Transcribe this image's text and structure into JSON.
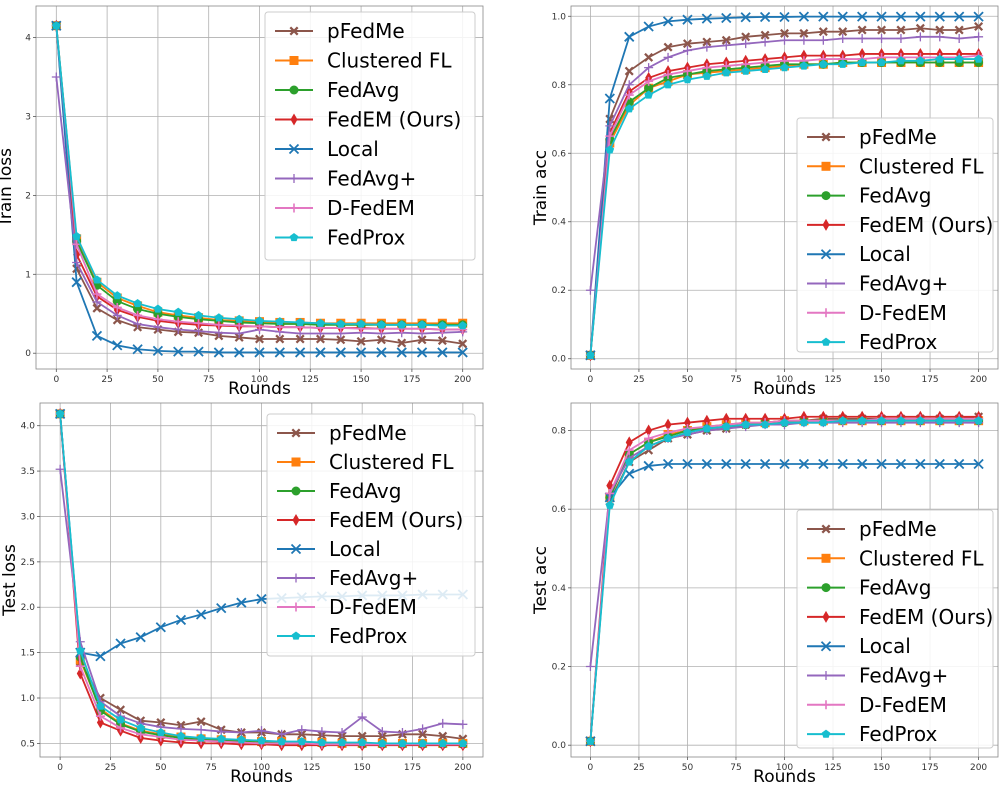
{
  "chart_data": [
    {
      "type": "line",
      "xlabel": "Rounds",
      "ylabel": "Train loss",
      "xlim": [
        -10,
        210
      ],
      "ylim": [
        -0.2,
        4.4
      ],
      "xticks": [
        "0",
        "25",
        "50",
        "75",
        "100",
        "125",
        "150",
        "175",
        "200"
      ],
      "yticks": [
        "0",
        "1",
        "2",
        "3",
        "4"
      ],
      "legend": "top-right",
      "grid": true,
      "x": [
        0,
        10,
        20,
        30,
        40,
        50,
        60,
        70,
        80,
        90,
        100,
        110,
        120,
        130,
        140,
        150,
        160,
        170,
        180,
        190,
        200
      ],
      "series": [
        {
          "name": "pFedMe",
          "color": "#8c564b",
          "marker": "X",
          "values": [
            4.15,
            1.07,
            0.57,
            0.42,
            0.33,
            0.3,
            0.27,
            0.26,
            0.22,
            0.2,
            0.18,
            0.18,
            0.18,
            0.18,
            0.17,
            0.15,
            0.17,
            0.13,
            0.17,
            0.16,
            0.12
          ]
        },
        {
          "name": "Clustered FL",
          "color": "#ff7f0e",
          "marker": "s",
          "values": [
            4.15,
            1.45,
            0.9,
            0.7,
            0.6,
            0.52,
            0.48,
            0.45,
            0.42,
            0.41,
            0.4,
            0.39,
            0.39,
            0.38,
            0.38,
            0.38,
            0.38,
            0.38,
            0.38,
            0.38,
            0.38
          ]
        },
        {
          "name": "FedAvg",
          "color": "#2ca02c",
          "marker": "o",
          "values": [
            4.15,
            1.42,
            0.86,
            0.66,
            0.56,
            0.5,
            0.46,
            0.43,
            0.41,
            0.39,
            0.38,
            0.37,
            0.37,
            0.36,
            0.36,
            0.36,
            0.36,
            0.36,
            0.36,
            0.36,
            0.36
          ]
        },
        {
          "name": "FedEM (Ours)",
          "color": "#d62728",
          "marker": "d",
          "values": [
            4.15,
            1.25,
            0.72,
            0.55,
            0.46,
            0.41,
            0.38,
            0.36,
            0.35,
            0.34,
            0.34,
            0.33,
            0.33,
            0.32,
            0.32,
            0.32,
            0.31,
            0.31,
            0.31,
            0.3,
            0.3
          ]
        },
        {
          "name": "Local",
          "color": "#1f77b4",
          "marker": "x",
          "values": [
            4.15,
            0.9,
            0.22,
            0.1,
            0.05,
            0.03,
            0.02,
            0.02,
            0.01,
            0.01,
            0.01,
            0.01,
            0.01,
            0.01,
            0.01,
            0.01,
            0.01,
            0.01,
            0.01,
            0.01,
            0.01
          ]
        },
        {
          "name": "FedAvg+",
          "color": "#9467bd",
          "marker": "4",
          "values": [
            3.5,
            1.15,
            0.65,
            0.48,
            0.37,
            0.33,
            0.3,
            0.28,
            0.26,
            0.25,
            0.3,
            0.27,
            0.25,
            0.25,
            0.25,
            0.26,
            0.25,
            0.26,
            0.25,
            0.26,
            0.27
          ]
        },
        {
          "name": "D-FedEM",
          "color": "#e377c2",
          "marker": "+",
          "values": [
            4.15,
            1.38,
            0.75,
            0.58,
            0.48,
            0.43,
            0.4,
            0.38,
            0.36,
            0.35,
            0.34,
            0.33,
            0.33,
            0.32,
            0.32,
            0.31,
            0.31,
            0.31,
            0.31,
            0.3,
            0.3
          ]
        },
        {
          "name": "FedProx",
          "color": "#17becf",
          "marker": "p",
          "values": [
            4.15,
            1.48,
            0.93,
            0.73,
            0.63,
            0.56,
            0.52,
            0.48,
            0.45,
            0.43,
            0.41,
            0.4,
            0.39,
            0.38,
            0.37,
            0.37,
            0.36,
            0.36,
            0.36,
            0.35,
            0.35
          ]
        }
      ]
    },
    {
      "type": "line",
      "xlabel": "Rounds",
      "ylabel": "Train acc",
      "xlim": [
        -10,
        210
      ],
      "ylim": [
        -0.03,
        1.03
      ],
      "xticks": [
        "0",
        "25",
        "50",
        "75",
        "100",
        "125",
        "150",
        "175",
        "200"
      ],
      "yticks": [
        "0.0",
        "0.2",
        "0.4",
        "0.6",
        "0.8",
        "1.0"
      ],
      "legend": "lower-right",
      "grid": true,
      "x": [
        0,
        10,
        20,
        30,
        40,
        50,
        60,
        70,
        80,
        90,
        100,
        110,
        120,
        130,
        140,
        150,
        160,
        170,
        180,
        190,
        200
      ],
      "series": [
        {
          "name": "pFedMe",
          "color": "#8c564b",
          "marker": "X",
          "values": [
            0.01,
            0.7,
            0.84,
            0.88,
            0.91,
            0.92,
            0.925,
            0.93,
            0.94,
            0.945,
            0.95,
            0.95,
            0.955,
            0.955,
            0.96,
            0.96,
            0.96,
            0.965,
            0.96,
            0.96,
            0.97
          ]
        },
        {
          "name": "Clustered FL",
          "color": "#ff7f0e",
          "marker": "s",
          "values": [
            0.01,
            0.63,
            0.74,
            0.79,
            0.81,
            0.83,
            0.835,
            0.84,
            0.845,
            0.85,
            0.855,
            0.86,
            0.86,
            0.865,
            0.865,
            0.865,
            0.865,
            0.865,
            0.865,
            0.865,
            0.865
          ]
        },
        {
          "name": "FedAvg",
          "color": "#2ca02c",
          "marker": "o",
          "values": [
            0.01,
            0.64,
            0.75,
            0.79,
            0.82,
            0.83,
            0.84,
            0.845,
            0.85,
            0.855,
            0.86,
            0.86,
            0.86,
            0.865,
            0.865,
            0.865,
            0.865,
            0.865,
            0.865,
            0.865,
            0.865
          ]
        },
        {
          "name": "FedEM (Ours)",
          "color": "#d62728",
          "marker": "d",
          "values": [
            0.01,
            0.66,
            0.78,
            0.82,
            0.84,
            0.85,
            0.86,
            0.865,
            0.87,
            0.875,
            0.88,
            0.885,
            0.885,
            0.885,
            0.89,
            0.89,
            0.89,
            0.89,
            0.89,
            0.89,
            0.89
          ]
        },
        {
          "name": "Local",
          "color": "#1f77b4",
          "marker": "x",
          "values": [
            0.01,
            0.76,
            0.94,
            0.97,
            0.985,
            0.99,
            0.993,
            0.995,
            0.997,
            0.998,
            0.998,
            0.999,
            0.999,
            0.999,
            0.999,
            0.999,
            0.999,
            0.999,
            0.999,
            0.999,
            0.999
          ]
        },
        {
          "name": "FedAvg+",
          "color": "#9467bd",
          "marker": "4",
          "values": [
            0.2,
            0.68,
            0.8,
            0.85,
            0.88,
            0.9,
            0.91,
            0.915,
            0.92,
            0.925,
            0.93,
            0.93,
            0.93,
            0.935,
            0.935,
            0.935,
            0.935,
            0.94,
            0.94,
            0.935,
            0.94
          ]
        },
        {
          "name": "D-FedEM",
          "color": "#e377c2",
          "marker": "+",
          "values": [
            0.01,
            0.65,
            0.77,
            0.81,
            0.83,
            0.84,
            0.85,
            0.855,
            0.86,
            0.865,
            0.87,
            0.87,
            0.875,
            0.875,
            0.875,
            0.88,
            0.88,
            0.88,
            0.88,
            0.88,
            0.885
          ]
        },
        {
          "name": "FedProx",
          "color": "#17becf",
          "marker": "p",
          "values": [
            0.01,
            0.61,
            0.73,
            0.77,
            0.8,
            0.815,
            0.825,
            0.835,
            0.84,
            0.845,
            0.85,
            0.855,
            0.86,
            0.86,
            0.865,
            0.865,
            0.87,
            0.87,
            0.875,
            0.875,
            0.875
          ]
        }
      ]
    },
    {
      "type": "line",
      "xlabel": "Rounds",
      "ylabel": "Test loss",
      "xlim": [
        -10,
        210
      ],
      "ylim": [
        0.35,
        4.25
      ],
      "xticks": [
        "0",
        "25",
        "50",
        "75",
        "100",
        "125",
        "150",
        "175",
        "200"
      ],
      "yticks": [
        "0.5",
        "1.0",
        "1.5",
        "2.0",
        "2.5",
        "3.0",
        "3.5",
        "4.0"
      ],
      "legend": "top-right",
      "grid": true,
      "x": [
        0,
        10,
        20,
        30,
        40,
        50,
        60,
        70,
        80,
        90,
        100,
        110,
        120,
        130,
        140,
        150,
        160,
        170,
        180,
        190,
        200
      ],
      "series": [
        {
          "name": "pFedMe",
          "color": "#8c564b",
          "marker": "X",
          "values": [
            4.13,
            1.4,
            1.0,
            0.87,
            0.75,
            0.73,
            0.7,
            0.74,
            0.65,
            0.62,
            0.62,
            0.6,
            0.6,
            0.59,
            0.58,
            0.58,
            0.58,
            0.6,
            0.6,
            0.58,
            0.55
          ]
        },
        {
          "name": "Clustered FL",
          "color": "#ff7f0e",
          "marker": "s",
          "values": [
            4.13,
            1.42,
            0.88,
            0.72,
            0.64,
            0.6,
            0.57,
            0.55,
            0.54,
            0.53,
            0.52,
            0.52,
            0.51,
            0.51,
            0.5,
            0.5,
            0.5,
            0.5,
            0.5,
            0.5,
            0.5
          ]
        },
        {
          "name": "FedAvg",
          "color": "#2ca02c",
          "marker": "o",
          "values": [
            4.13,
            1.45,
            0.86,
            0.71,
            0.63,
            0.59,
            0.56,
            0.54,
            0.53,
            0.52,
            0.51,
            0.51,
            0.5,
            0.5,
            0.5,
            0.49,
            0.49,
            0.49,
            0.49,
            0.49,
            0.49
          ]
        },
        {
          "name": "FedEM (Ours)",
          "color": "#d62728",
          "marker": "d",
          "values": [
            4.13,
            1.27,
            0.73,
            0.64,
            0.56,
            0.53,
            0.51,
            0.5,
            0.5,
            0.49,
            0.49,
            0.48,
            0.48,
            0.48,
            0.48,
            0.48,
            0.48,
            0.48,
            0.48,
            0.48,
            0.48
          ]
        },
        {
          "name": "Local",
          "color": "#1f77b4",
          "marker": "x",
          "values": [
            4.13,
            1.5,
            1.46,
            1.6,
            1.67,
            1.78,
            1.86,
            1.92,
            1.99,
            2.05,
            2.09,
            2.1,
            2.11,
            2.12,
            2.12,
            2.13,
            2.13,
            2.13,
            2.14,
            2.14,
            2.14
          ]
        },
        {
          "name": "FedAvg+",
          "color": "#9467bd",
          "marker": "4",
          "values": [
            3.52,
            1.62,
            0.96,
            0.8,
            0.72,
            0.68,
            0.66,
            0.65,
            0.63,
            0.62,
            0.64,
            0.6,
            0.65,
            0.63,
            0.62,
            0.79,
            0.63,
            0.62,
            0.66,
            0.72,
            0.71
          ]
        },
        {
          "name": "D-FedEM",
          "color": "#e377c2",
          "marker": "+",
          "values": [
            4.13,
            1.35,
            0.8,
            0.67,
            0.6,
            0.57,
            0.54,
            0.53,
            0.52,
            0.51,
            0.5,
            0.5,
            0.5,
            0.49,
            0.49,
            0.49,
            0.49,
            0.49,
            0.49,
            0.49,
            0.49
          ]
        },
        {
          "name": "FedProx",
          "color": "#17becf",
          "marker": "p",
          "values": [
            4.13,
            1.52,
            0.91,
            0.76,
            0.67,
            0.62,
            0.58,
            0.56,
            0.55,
            0.54,
            0.53,
            0.52,
            0.52,
            0.51,
            0.51,
            0.51,
            0.5,
            0.5,
            0.5,
            0.5,
            0.5
          ]
        }
      ]
    },
    {
      "type": "line",
      "xlabel": "Rounds",
      "ylabel": "Test acc",
      "xlim": [
        -10,
        210
      ],
      "ylim": [
        -0.03,
        0.87
      ],
      "xticks": [
        "0",
        "25",
        "50",
        "75",
        "100",
        "125",
        "150",
        "175",
        "200"
      ],
      "yticks": [
        "0.0",
        "0.2",
        "0.4",
        "0.6",
        "0.8"
      ],
      "legend": "lower-right",
      "grid": true,
      "x": [
        0,
        10,
        20,
        30,
        40,
        50,
        60,
        70,
        80,
        90,
        100,
        110,
        120,
        130,
        140,
        150,
        160,
        170,
        180,
        190,
        200
      ],
      "series": [
        {
          "name": "pFedMe",
          "color": "#8c564b",
          "marker": "X",
          "values": [
            0.01,
            0.62,
            0.72,
            0.75,
            0.78,
            0.79,
            0.8,
            0.805,
            0.815,
            0.82,
            0.825,
            0.825,
            0.83,
            0.83,
            0.83,
            0.83,
            0.83,
            0.83,
            0.83,
            0.83,
            0.835
          ]
        },
        {
          "name": "Clustered FL",
          "color": "#ff7f0e",
          "marker": "s",
          "values": [
            0.01,
            0.63,
            0.74,
            0.77,
            0.79,
            0.8,
            0.81,
            0.815,
            0.82,
            0.82,
            0.825,
            0.825,
            0.825,
            0.825,
            0.825,
            0.825,
            0.825,
            0.825,
            0.825,
            0.825,
            0.825
          ]
        },
        {
          "name": "FedAvg",
          "color": "#2ca02c",
          "marker": "o",
          "values": [
            0.01,
            0.63,
            0.74,
            0.77,
            0.785,
            0.8,
            0.805,
            0.81,
            0.815,
            0.82,
            0.82,
            0.825,
            0.825,
            0.825,
            0.825,
            0.825,
            0.825,
            0.825,
            0.825,
            0.825,
            0.825
          ]
        },
        {
          "name": "FedEM (Ours)",
          "color": "#d62728",
          "marker": "d",
          "values": [
            0.01,
            0.66,
            0.77,
            0.8,
            0.815,
            0.82,
            0.825,
            0.83,
            0.83,
            0.83,
            0.83,
            0.835,
            0.835,
            0.835,
            0.835,
            0.835,
            0.835,
            0.835,
            0.835,
            0.835,
            0.835
          ]
        },
        {
          "name": "Local",
          "color": "#1f77b4",
          "marker": "x",
          "values": [
            0.01,
            0.63,
            0.69,
            0.71,
            0.715,
            0.715,
            0.715,
            0.715,
            0.715,
            0.715,
            0.715,
            0.715,
            0.715,
            0.715,
            0.715,
            0.715,
            0.715,
            0.715,
            0.715,
            0.715,
            0.715
          ]
        },
        {
          "name": "FedAvg+",
          "color": "#9467bd",
          "marker": "4",
          "values": [
            0.2,
            0.64,
            0.73,
            0.76,
            0.78,
            0.79,
            0.8,
            0.805,
            0.81,
            0.815,
            0.815,
            0.82,
            0.82,
            0.82,
            0.82,
            0.82,
            0.82,
            0.82,
            0.82,
            0.82,
            0.82
          ]
        },
        {
          "name": "D-FedEM",
          "color": "#e377c2",
          "marker": "+",
          "values": [
            0.01,
            0.64,
            0.75,
            0.78,
            0.795,
            0.805,
            0.81,
            0.815,
            0.82,
            0.82,
            0.825,
            0.825,
            0.825,
            0.825,
            0.825,
            0.83,
            0.83,
            0.83,
            0.83,
            0.83,
            0.83
          ]
        },
        {
          "name": "FedProx",
          "color": "#17becf",
          "marker": "p",
          "values": [
            0.01,
            0.61,
            0.72,
            0.76,
            0.78,
            0.795,
            0.805,
            0.81,
            0.815,
            0.815,
            0.82,
            0.82,
            0.82,
            0.825,
            0.825,
            0.825,
            0.825,
            0.825,
            0.825,
            0.825,
            0.825
          ]
        }
      ]
    }
  ]
}
